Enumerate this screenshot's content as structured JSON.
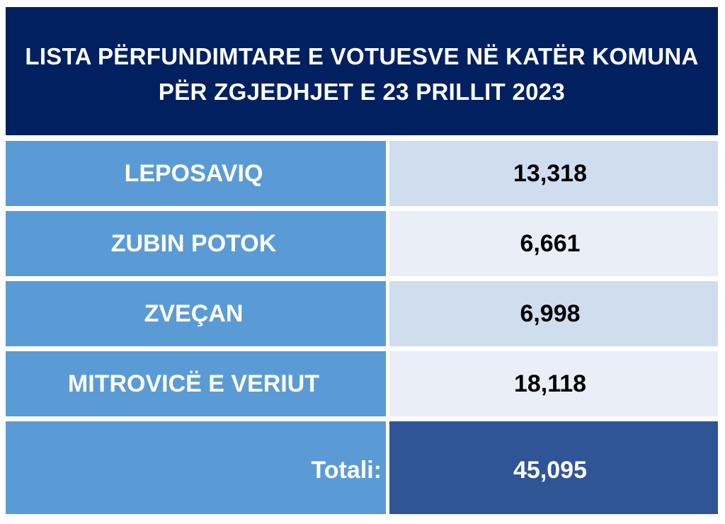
{
  "title": {
    "line1": "LISTA PËRFUNDIMTARE E VOTUESVE NË KATËR KOMUNA",
    "line2": "PËR ZGJEDHJET E 23 PRILLIT 2023"
  },
  "rows": [
    {
      "municipality": "LEPOSAVIQ",
      "voters": "13,318"
    },
    {
      "municipality": "ZUBIN POTOK",
      "voters": "6,661"
    },
    {
      "municipality": "ZVEÇAN",
      "voters": "6,998"
    },
    {
      "municipality": "MITROVICË E VERIUT",
      "voters": "18,118"
    }
  ],
  "total": {
    "label": "Totali:",
    "value": "45,095"
  },
  "colors": {
    "header_bg": "#002060",
    "label_bg": "#5b9bd5",
    "value_bg_dark": "#d0ddef",
    "value_bg_light": "#e9eef7",
    "total_bg": "#2f5597"
  }
}
